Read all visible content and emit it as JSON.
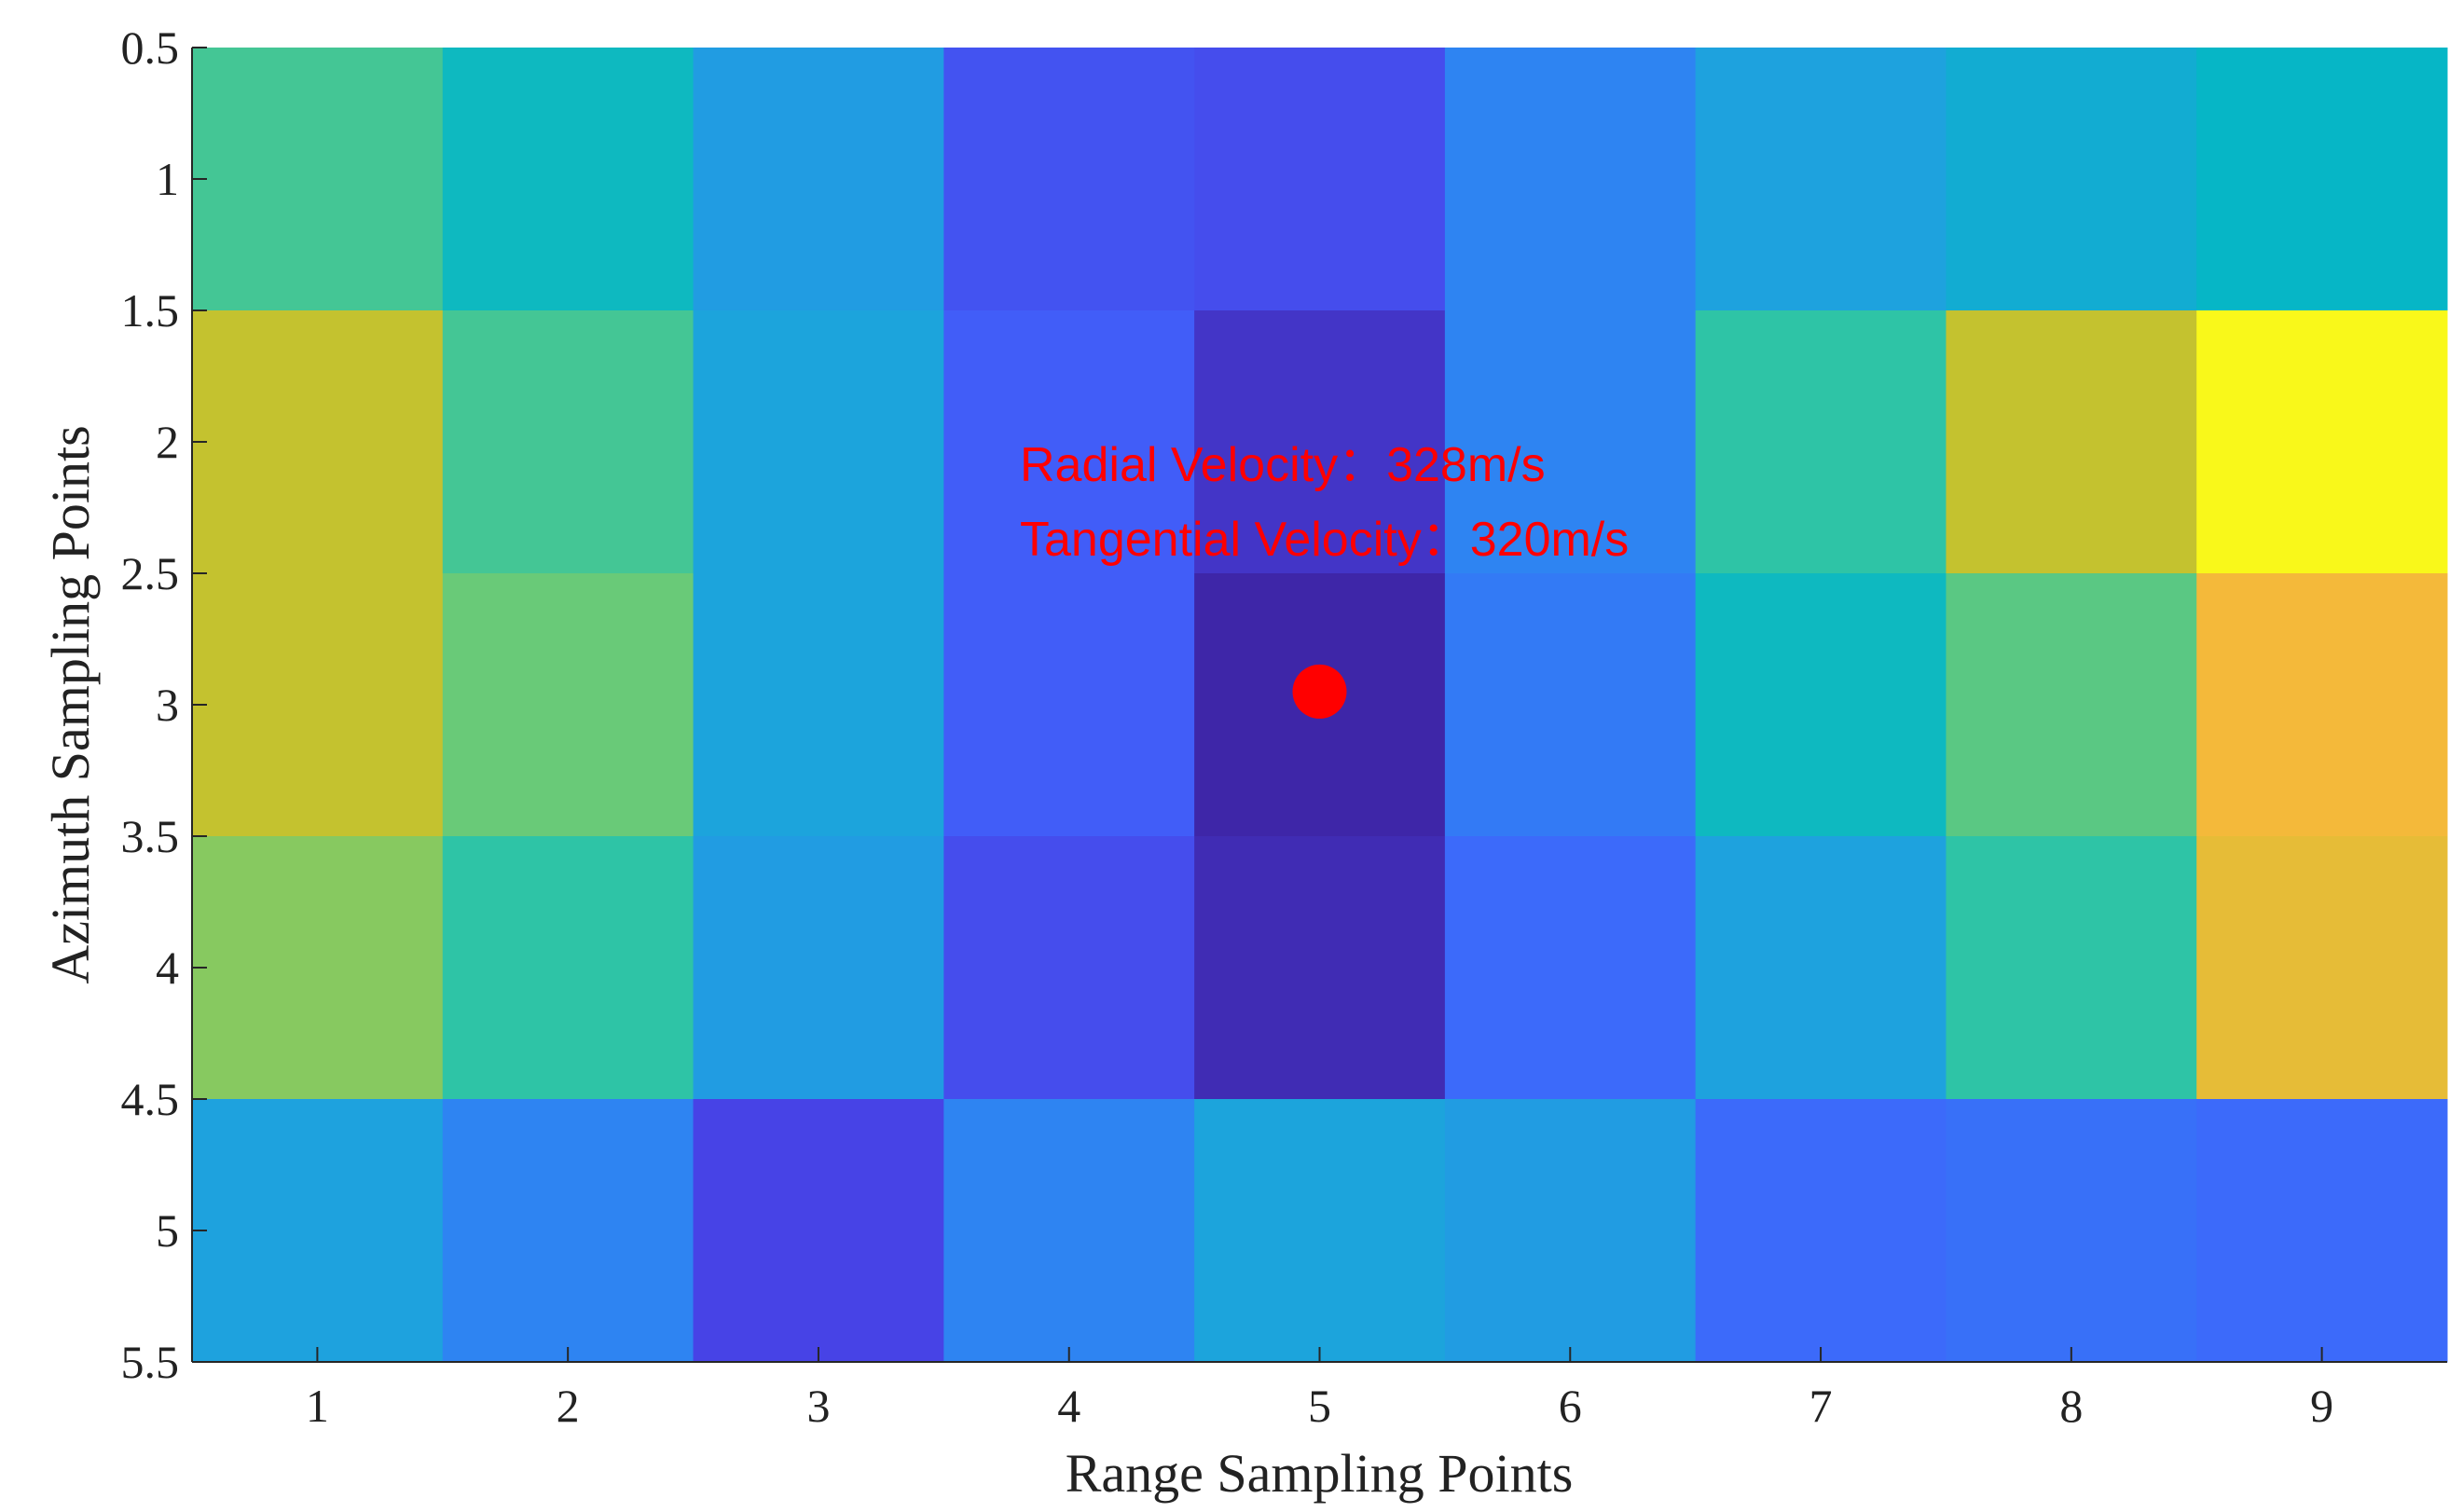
{
  "chart_data": {
    "type": "heatmap",
    "x_label": "Range Sampling Points",
    "y_label": "Azimuth Sampling Points",
    "x": [
      1,
      2,
      3,
      4,
      5,
      6,
      7,
      8,
      9
    ],
    "y": [
      1,
      2,
      3,
      4,
      5
    ],
    "values": [
      [
        0.63,
        0.52,
        0.38,
        0.15,
        0.13,
        0.3,
        0.4,
        0.45,
        0.5
      ],
      [
        0.8,
        0.63,
        0.41,
        0.18,
        0.05,
        0.3,
        0.6,
        0.8,
        1.0
      ],
      [
        0.8,
        0.68,
        0.41,
        0.18,
        0.0,
        0.27,
        0.52,
        0.66,
        0.9
      ],
      [
        0.72,
        0.6,
        0.38,
        0.13,
        0.02,
        0.22,
        0.4,
        0.6,
        0.87
      ],
      [
        0.4,
        0.3,
        0.1,
        0.3,
        0.41,
        0.38,
        0.22,
        0.24,
        0.22
      ]
    ],
    "colormap": [
      "#3e26a8",
      "#4743e6",
      "#3f63fc",
      "#2e84f2",
      "#1ea2de",
      "#06b6c6",
      "#2ec4a6",
      "#78cb6c",
      "#c4c22f",
      "#f4b93a",
      "#f9f81a"
    ],
    "xlim": [
      0.5,
      9.5
    ],
    "ylim": [
      0.5,
      5.5
    ],
    "y_reversed": true,
    "xticks": [
      1,
      2,
      3,
      4,
      5,
      6,
      7,
      8,
      9
    ],
    "yticks": [
      0.5,
      1,
      1.5,
      2,
      2.5,
      3,
      3.5,
      4,
      4.5,
      5,
      5.5
    ],
    "marker": {
      "x": 5,
      "y": 2.95,
      "color": "#ff0000"
    },
    "annotations": [
      "Radial Velocity：328m/s",
      "Tangential Velocity：320m/s"
    ],
    "annotation_color": "#ff0000"
  }
}
